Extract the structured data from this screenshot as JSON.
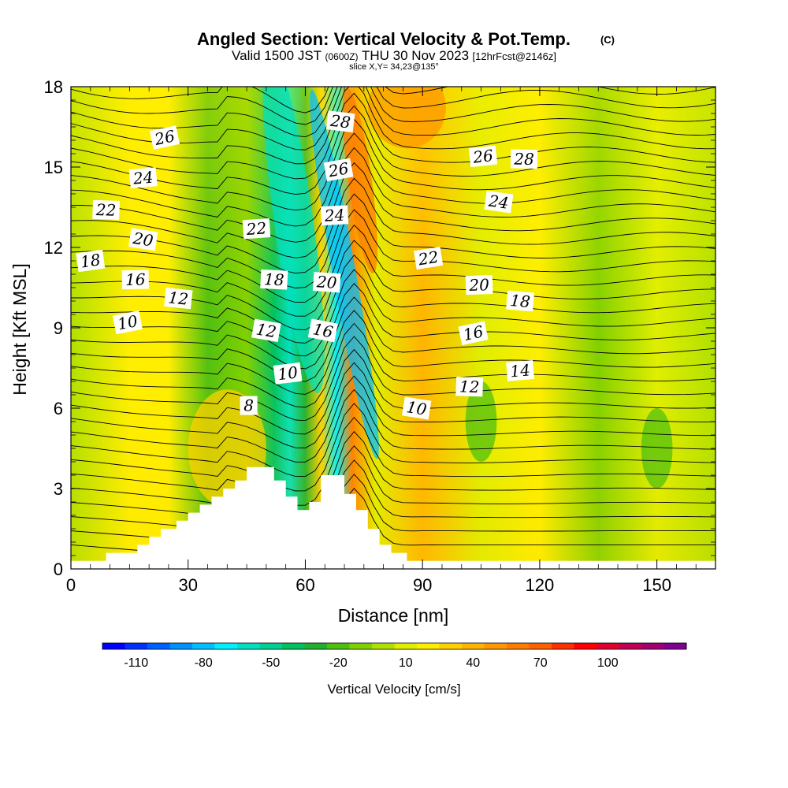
{
  "chart_data": {
    "type": "heatmap",
    "title": "Angled Section: Vertical Velocity & Pot.Temp.",
    "title_unit": "(C)",
    "subtitle": {
      "valid_prefix": "Valid 1500 JST",
      "utc": "(0600Z)",
      "date": "THU 30 Nov 2023",
      "forecast": "[12hrFcst@2146z]"
    },
    "slice_label": "slice X,Y= 34,23@135°",
    "xlabel": "Distance [nm]",
    "ylabel": "Height [Kft MSL]",
    "xlim": [
      0,
      165
    ],
    "ylim": [
      0,
      18
    ],
    "x_ticks": [
      "0",
      "30",
      "60",
      "90",
      "120",
      "150"
    ],
    "y_ticks": [
      "0",
      "3",
      "6",
      "9",
      "12",
      "15",
      "18"
    ],
    "colorbar": {
      "label": "Vertical Velocity [cm/s]",
      "tick_labels": [
        "-110",
        "-80",
        "-50",
        "-20",
        "10",
        "40",
        "70",
        "100"
      ],
      "colors": [
        "#0000ff",
        "#0030ff",
        "#0060ff",
        "#0090ff",
        "#00c0ff",
        "#00f0ff",
        "#00e0c0",
        "#00d090",
        "#00c060",
        "#20b030",
        "#50c010",
        "#80d000",
        "#b0e000",
        "#e0ee00",
        "#ffee00",
        "#ffd000",
        "#ffb400",
        "#ff9800",
        "#ff7c00",
        "#ff6000",
        "#ff3000",
        "#ff0000",
        "#e00030",
        "#c00050",
        "#a00070",
        "#800090"
      ]
    },
    "terrain": [
      [
        0,
        0.3
      ],
      [
        9,
        0.3
      ],
      [
        9,
        0.6
      ],
      [
        17,
        0.6
      ],
      [
        17,
        0.9
      ],
      [
        20,
        0.9
      ],
      [
        20,
        1.2
      ],
      [
        23,
        1.2
      ],
      [
        23,
        1.5
      ],
      [
        27,
        1.5
      ],
      [
        27,
        1.8
      ],
      [
        30,
        1.8
      ],
      [
        30,
        2.1
      ],
      [
        33,
        2.1
      ],
      [
        33,
        2.4
      ],
      [
        36,
        2.4
      ],
      [
        36,
        2.7
      ],
      [
        39,
        2.7
      ],
      [
        39,
        3.0
      ],
      [
        42,
        3.0
      ],
      [
        42,
        3.3
      ],
      [
        45,
        3.3
      ],
      [
        45,
        3.8
      ],
      [
        52,
        3.8
      ],
      [
        52,
        3.3
      ],
      [
        55,
        3.3
      ],
      [
        55,
        2.7
      ],
      [
        58,
        2.7
      ],
      [
        58,
        2.2
      ],
      [
        61,
        2.2
      ],
      [
        61,
        2.5
      ],
      [
        64,
        2.5
      ],
      [
        64,
        3.5
      ],
      [
        70,
        3.5
      ],
      [
        70,
        2.8
      ],
      [
        73,
        2.8
      ],
      [
        73,
        2.2
      ],
      [
        76,
        2.2
      ],
      [
        76,
        1.5
      ],
      [
        79,
        1.5
      ],
      [
        79,
        0.9
      ],
      [
        82,
        0.9
      ],
      [
        82,
        0.6
      ],
      [
        86,
        0.6
      ],
      [
        86,
        0.3
      ],
      [
        165,
        0.3
      ]
    ],
    "velocity_bands": [
      {
        "x": 0,
        "value": -5
      },
      {
        "x": 15,
        "value": 15
      },
      {
        "x": 25,
        "value": 20
      },
      {
        "x": 35,
        "value": -25
      },
      {
        "x": 45,
        "value": -10
      },
      {
        "x": 52,
        "value": -45
      },
      {
        "x": 56,
        "value": -65
      },
      {
        "x": 60,
        "value": -30
      },
      {
        "x": 64,
        "value": 25
      },
      {
        "x": 68,
        "value": -70
      },
      {
        "x": 72,
        "value": 55
      },
      {
        "x": 78,
        "value": 10
      },
      {
        "x": 90,
        "value": 35
      },
      {
        "x": 105,
        "value": 5
      },
      {
        "x": 120,
        "value": 20
      },
      {
        "x": 135,
        "value": -10
      },
      {
        "x": 150,
        "value": 10
      },
      {
        "x": 165,
        "value": -5
      }
    ],
    "contour_labels": [
      {
        "text": "26",
        "x": 24,
        "y": 16.1
      },
      {
        "text": "24",
        "x": 18.5,
        "y": 14.6
      },
      {
        "text": "22",
        "x": 9,
        "y": 13.4
      },
      {
        "text": "20",
        "x": 18.5,
        "y": 12.3
      },
      {
        "text": "18",
        "x": 5,
        "y": 11.5
      },
      {
        "text": "16",
        "x": 16.5,
        "y": 10.8
      },
      {
        "text": "12",
        "x": 27.5,
        "y": 10.1
      },
      {
        "text": "10",
        "x": 14.5,
        "y": 9.2
      },
      {
        "text": "22",
        "x": 47.5,
        "y": 12.7
      },
      {
        "text": "18",
        "x": 52,
        "y": 10.8
      },
      {
        "text": "12",
        "x": 50,
        "y": 8.9
      },
      {
        "text": "10",
        "x": 55.5,
        "y": 7.3
      },
      {
        "text": "8",
        "x": 45.5,
        "y": 6.1
      },
      {
        "text": "28",
        "x": 69,
        "y": 16.7
      },
      {
        "text": "26",
        "x": 68.5,
        "y": 14.9
      },
      {
        "text": "24",
        "x": 67.5,
        "y": 13.2
      },
      {
        "text": "20",
        "x": 65.5,
        "y": 10.7
      },
      {
        "text": "16",
        "x": 64.5,
        "y": 8.9
      },
      {
        "text": "26",
        "x": 105.5,
        "y": 15.4
      },
      {
        "text": "28",
        "x": 116,
        "y": 15.3
      },
      {
        "text": "24",
        "x": 109.5,
        "y": 13.7
      },
      {
        "text": "22",
        "x": 91.5,
        "y": 11.6
      },
      {
        "text": "20",
        "x": 104.5,
        "y": 10.6
      },
      {
        "text": "18",
        "x": 115,
        "y": 10.0
      },
      {
        "text": "16",
        "x": 103,
        "y": 8.8
      },
      {
        "text": "14",
        "x": 115,
        "y": 7.4
      },
      {
        "text": "12",
        "x": 102,
        "y": 6.8
      },
      {
        "text": "10",
        "x": 88.5,
        "y": 6.0
      }
    ]
  }
}
